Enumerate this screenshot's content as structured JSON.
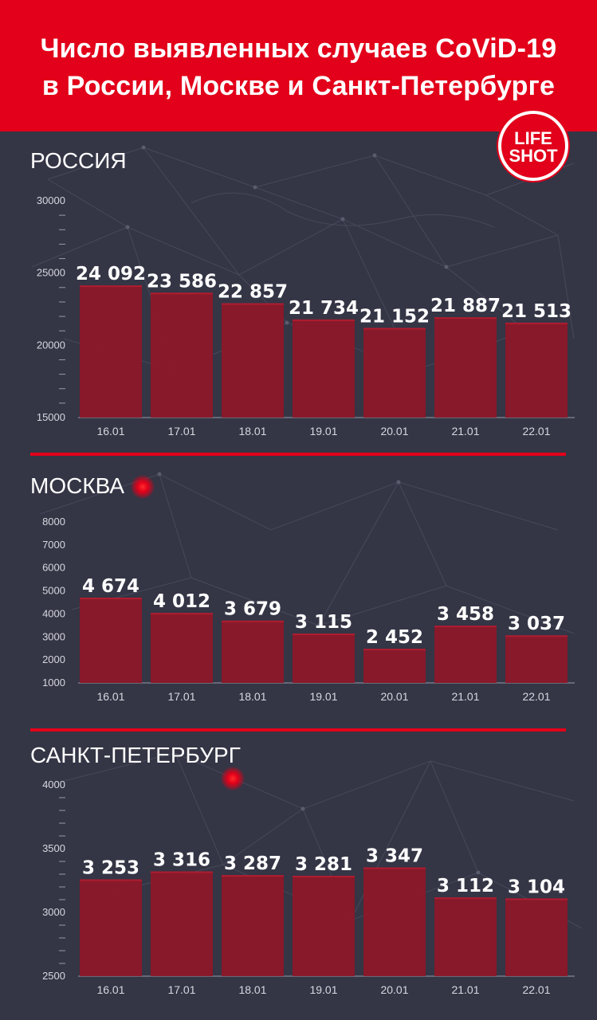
{
  "header": {
    "title_line1": "Число выявленных случаев CoViD-19",
    "title_line2": "в России, Москве и Санкт-Петербурге"
  },
  "logo": {
    "line1": "LIFE",
    "line2": "SHOT"
  },
  "colors": {
    "background": "#343545",
    "accent": "#e2001a",
    "bar": "#8e1728",
    "text": "#ffffff"
  },
  "chart_data": [
    {
      "type": "bar",
      "title": "РОССИЯ",
      "categories": [
        "16.01",
        "17.01",
        "18.01",
        "19.01",
        "20.01",
        "21.01",
        "22.01"
      ],
      "values": [
        24092,
        23586,
        22857,
        21734,
        21152,
        21887,
        21513
      ],
      "value_labels": [
        "24 092",
        "23 586",
        "22 857",
        "21 734",
        "21 152",
        "21 887",
        "21 513"
      ],
      "ylim": [
        15000,
        30000
      ],
      "yticks": [
        "30000",
        "25000",
        "20000",
        "15000"
      ],
      "grid": false
    },
    {
      "type": "bar",
      "title": "МОСКВА",
      "categories": [
        "16.01",
        "17.01",
        "18.01",
        "19.01",
        "20.01",
        "21.01",
        "22.01"
      ],
      "values": [
        4674,
        4012,
        3679,
        3115,
        2452,
        3458,
        3037
      ],
      "value_labels": [
        "4 674",
        "4 012",
        "3 679",
        "3 115",
        "2 452",
        "3 458",
        "3 037"
      ],
      "ylim": [
        1000,
        8000
      ],
      "yticks": [
        "8000",
        "7000",
        "6000",
        "5000",
        "4000",
        "3000",
        "2000",
        "1000"
      ],
      "grid": false
    },
    {
      "type": "bar",
      "title": "САНКТ-ПЕТЕРБУРГ",
      "categories": [
        "16.01",
        "17.01",
        "18.01",
        "19.01",
        "20.01",
        "21.01",
        "22.01"
      ],
      "values": [
        3253,
        3316,
        3287,
        3281,
        3347,
        3112,
        3104
      ],
      "value_labels": [
        "3 253",
        "3 316",
        "3 287",
        "3 281",
        "3 347",
        "3 112",
        "3 104"
      ],
      "ylim": [
        2500,
        4000
      ],
      "yticks": [
        "4000",
        "3500",
        "3000",
        "2500"
      ],
      "grid": false
    }
  ]
}
